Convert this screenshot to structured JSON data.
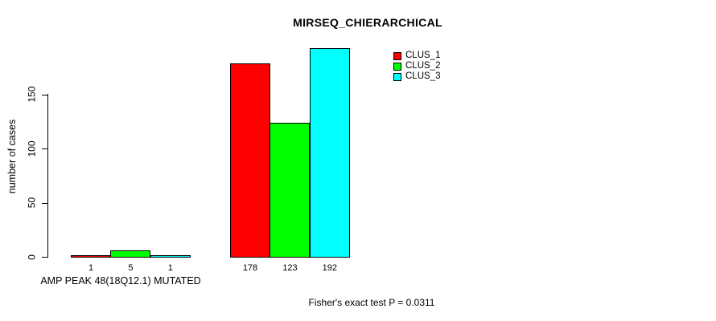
{
  "chart_data": {
    "type": "bar",
    "title": "MIRSEQ_CHIERARCHICAL",
    "ylabel": "number of cases",
    "xlabel": "",
    "ylim": [
      0,
      200
    ],
    "y_ticks": [
      0,
      50,
      100,
      150
    ],
    "grid": false,
    "legend_position": "top-right",
    "categories": [
      "AMP PEAK 48(18Q12.1) MUTATED",
      ""
    ],
    "group_label": "AMP PEAK 48(18Q12.1) MUTATED",
    "series": [
      {
        "name": "CLUS_1",
        "color": "#ff0000",
        "values": [
          1,
          178
        ]
      },
      {
        "name": "CLUS_2",
        "color": "#00ff00",
        "values": [
          5,
          123
        ]
      },
      {
        "name": "CLUS_3",
        "color": "#00ffff",
        "values": [
          1,
          192
        ]
      }
    ],
    "bar_value_labels": [
      [
        "1",
        "5",
        "1"
      ],
      [
        "178",
        "123",
        "192"
      ]
    ],
    "annotation": "Fisher's exact test P = 0.0311"
  }
}
